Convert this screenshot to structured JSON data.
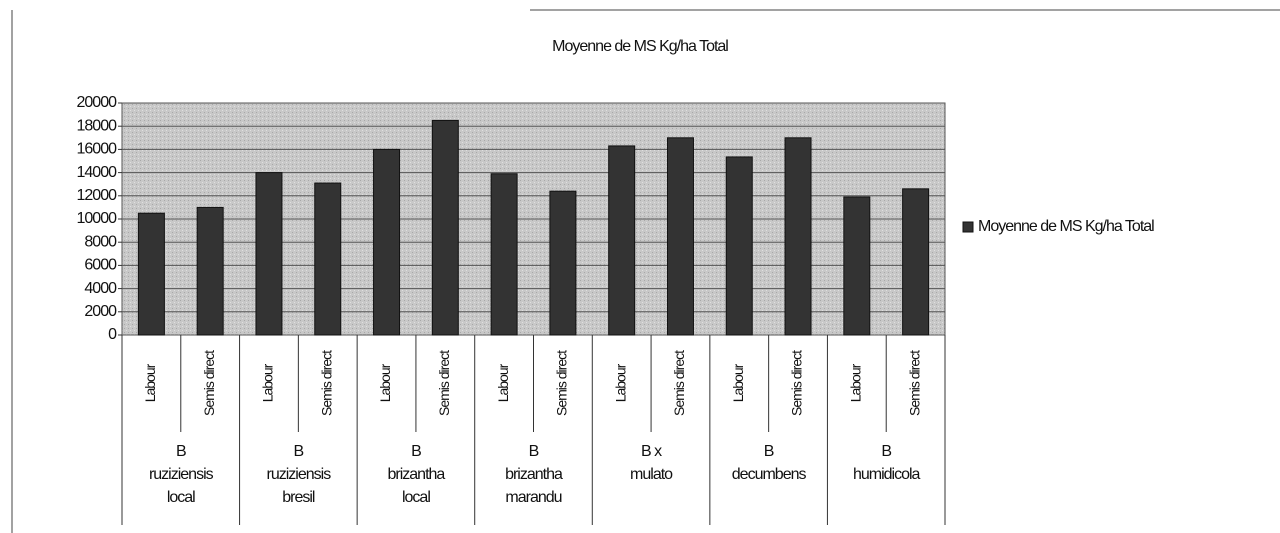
{
  "chart_data": {
    "type": "bar",
    "title": "Moyenne de MS Kg/ha Total",
    "categories": [
      "Labour",
      "Semis direct",
      "Labour",
      "Semis direct",
      "Labour",
      "Semis direct",
      "Labour",
      "Semis direct",
      "Labour",
      "Semis direct",
      "Labour",
      "Semis direct",
      "Labour",
      "Semis direct"
    ],
    "groups": [
      [
        "B",
        "ruziziensis",
        "local"
      ],
      [
        "B",
        "ruziziensis",
        "bresil"
      ],
      [
        "B",
        "brizantha",
        "local"
      ],
      [
        "B",
        "brizantha",
        "marandu"
      ],
      [
        "B x",
        "mulato"
      ],
      [
        "B",
        "decumbens"
      ],
      [
        "B",
        "humidicola"
      ]
    ],
    "series": [
      {
        "name": "Moyenne de MS Kg/ha Total",
        "color": "#333333",
        "values": [
          10500,
          11000,
          14000,
          13100,
          16000,
          18500,
          13900,
          12400,
          16300,
          17000,
          15350,
          17000,
          11900,
          12600
        ]
      }
    ],
    "ylim": [
      0,
      20000
    ],
    "yticks": [
      0,
      2000,
      4000,
      6000,
      8000,
      10000,
      12000,
      14000,
      16000,
      18000,
      20000
    ],
    "grid": true,
    "legend": "right"
  }
}
